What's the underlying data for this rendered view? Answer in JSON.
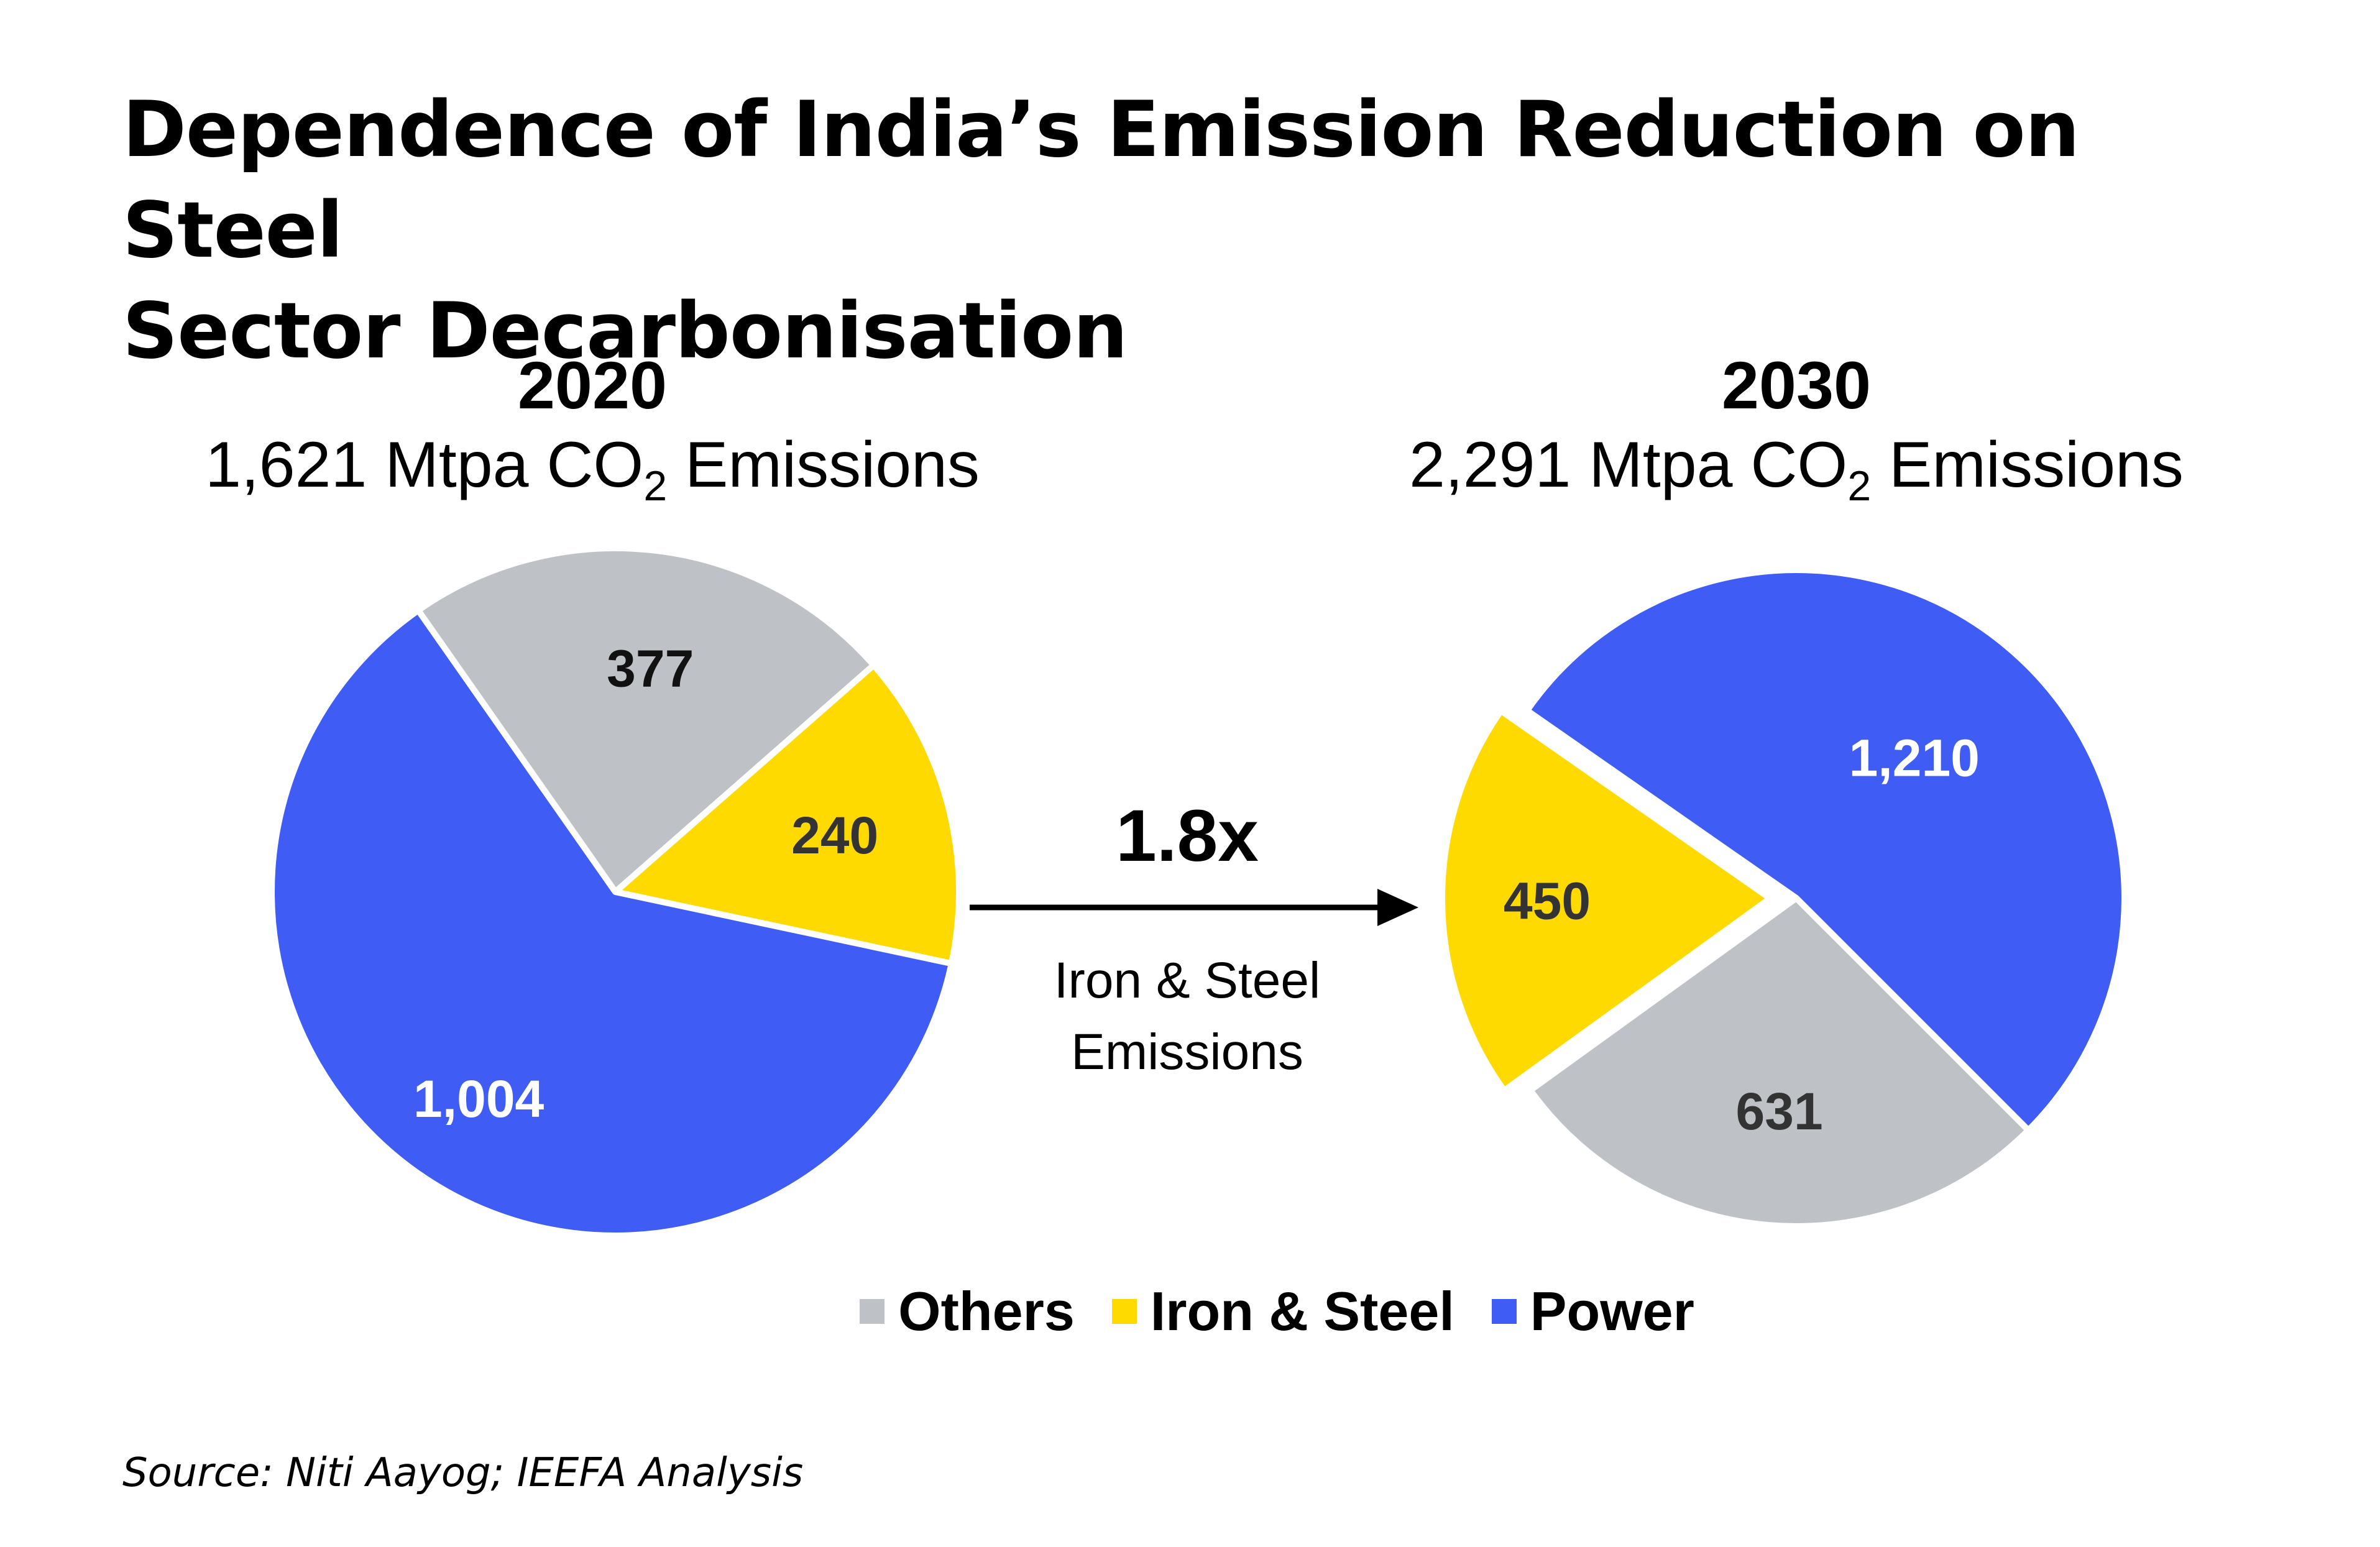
{
  "title": {
    "line1": "Dependence of India’s Emission Reduction on Steel",
    "line2": "Sector Decarbonisation"
  },
  "chart_data": [
    {
      "type": "pie",
      "title": "2020",
      "subtitle_prefix": "1,621 Mtpa CO",
      "subtitle_sub": "2",
      "subtitle_suffix": " Emissions",
      "total": 1621,
      "categories": [
        "Others",
        "Iron & Steel",
        "Power"
      ],
      "values": [
        377,
        240,
        1004
      ],
      "labels": [
        "377",
        "240",
        "1,004"
      ]
    },
    {
      "type": "pie",
      "title": "2030",
      "subtitle_prefix": "2,291 Mtpa CO",
      "subtitle_sub": "2",
      "subtitle_suffix": " Emissions",
      "total": 2291,
      "categories": [
        "Others",
        "Iron & Steel",
        "Power"
      ],
      "values": [
        631,
        450,
        1210
      ],
      "labels": [
        "631",
        "450",
        "1,210"
      ]
    }
  ],
  "arrow": {
    "multiplier": "1.8x",
    "caption_line1": "Iron & Steel",
    "caption_line2": "Emissions"
  },
  "legend": [
    {
      "label": "Others",
      "color": "#BEC1C6"
    },
    {
      "label": "Iron & Steel",
      "color": "#FFDA00"
    },
    {
      "label": "Power",
      "color": "#3F5DF5"
    }
  ],
  "colors": {
    "others": "#BEC1C6",
    "iron_steel": "#FFDA00",
    "power": "#3F5DF5",
    "label_dark": "#333333",
    "label_light": "#ffffff"
  },
  "source": "Source: Niti Aayog; IEEFA Analysis"
}
